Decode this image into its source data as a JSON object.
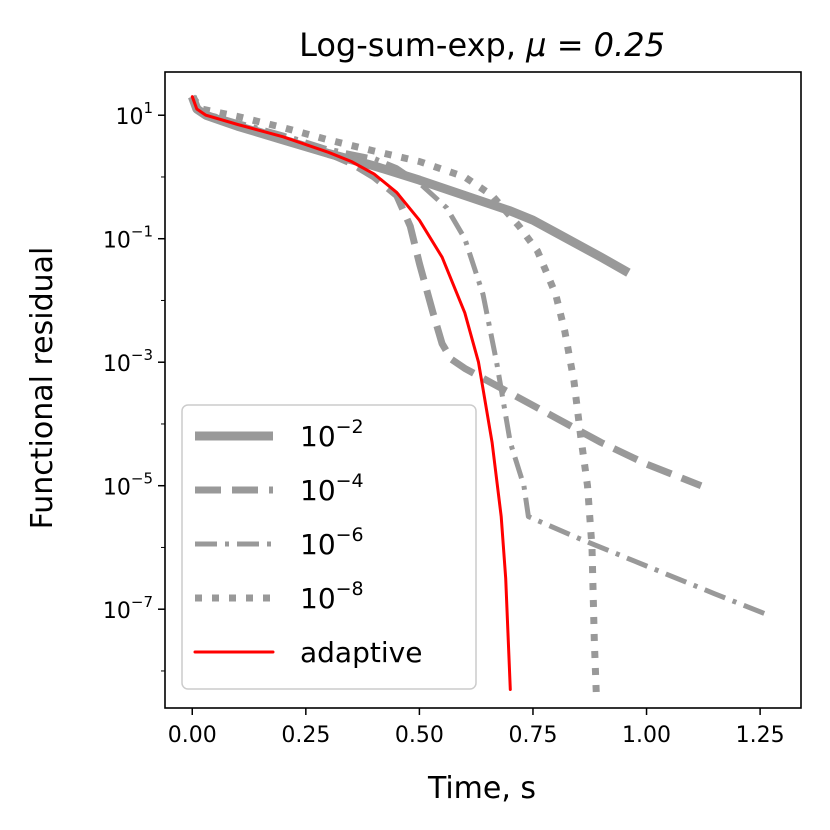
{
  "chart_data": {
    "type": "line",
    "title": "Log-sum-exp, ",
    "title_math": "μ = 0.25",
    "xlabel": "Time, s",
    "ylabel": "Functional residual",
    "xlim": [
      -0.06,
      1.34
    ],
    "ylim_log10": [
      -8.6,
      1.7
    ],
    "yscale": "log",
    "x_ticks": [
      {
        "value": 0.0,
        "label": "0.00"
      },
      {
        "value": 0.25,
        "label": "0.25"
      },
      {
        "value": 0.5,
        "label": "0.50"
      },
      {
        "value": 0.75,
        "label": "0.75"
      },
      {
        "value": 1.0,
        "label": "1.00"
      },
      {
        "value": 1.25,
        "label": "1.25"
      }
    ],
    "y_ticks": [
      {
        "exp": 1,
        "base": "10",
        "sup": "1"
      },
      {
        "exp": -1,
        "base": "10",
        "sup": "−1"
      },
      {
        "exp": -3,
        "base": "10",
        "sup": "−3"
      },
      {
        "exp": -5,
        "base": "10",
        "sup": "−5"
      },
      {
        "exp": -7,
        "base": "10",
        "sup": "−7"
      }
    ],
    "legend": {
      "placement": "lower-left",
      "entries": [
        {
          "base": "10",
          "sup": "−2",
          "text": ""
        },
        {
          "base": "10",
          "sup": "−4",
          "text": ""
        },
        {
          "base": "10",
          "sup": "−6",
          "text": ""
        },
        {
          "base": "10",
          "sup": "−8",
          "text": ""
        },
        {
          "base": "",
          "sup": "",
          "text": "adaptive"
        }
      ]
    },
    "series": [
      {
        "name": "1e-2",
        "color": "#999999",
        "style": "solid-thick",
        "points": [
          [
            0.0,
            1.3
          ],
          [
            0.01,
            1.1
          ],
          [
            0.03,
            1.0
          ],
          [
            0.1,
            0.82
          ],
          [
            0.2,
            0.6
          ],
          [
            0.3,
            0.38
          ],
          [
            0.4,
            0.18
          ],
          [
            0.5,
            -0.05
          ],
          [
            0.6,
            -0.3
          ],
          [
            0.7,
            -0.55
          ],
          [
            0.75,
            -0.7
          ],
          [
            0.8,
            -0.9
          ],
          [
            0.9,
            -1.3
          ],
          [
            0.96,
            -1.55
          ]
        ]
      },
      {
        "name": "1e-4",
        "color": "#999999",
        "style": "dashed",
        "points": [
          [
            0.0,
            1.3
          ],
          [
            0.01,
            1.1
          ],
          [
            0.03,
            1.0
          ],
          [
            0.1,
            0.85
          ],
          [
            0.2,
            0.62
          ],
          [
            0.3,
            0.38
          ],
          [
            0.35,
            0.22
          ],
          [
            0.4,
            0.0
          ],
          [
            0.45,
            -0.3
          ],
          [
            0.48,
            -0.8
          ],
          [
            0.5,
            -1.4
          ],
          [
            0.53,
            -2.2
          ],
          [
            0.55,
            -2.7
          ],
          [
            0.57,
            -2.95
          ],
          [
            0.6,
            -3.1
          ],
          [
            0.7,
            -3.5
          ],
          [
            0.8,
            -3.9
          ],
          [
            0.9,
            -4.3
          ],
          [
            1.0,
            -4.65
          ],
          [
            1.12,
            -5.0
          ]
        ]
      },
      {
        "name": "1e-6",
        "color": "#999999",
        "style": "dashdot",
        "points": [
          [
            0.0,
            1.3
          ],
          [
            0.02,
            1.05
          ],
          [
            0.1,
            0.88
          ],
          [
            0.2,
            0.68
          ],
          [
            0.3,
            0.45
          ],
          [
            0.4,
            0.3
          ],
          [
            0.45,
            0.15
          ],
          [
            0.5,
            -0.1
          ],
          [
            0.56,
            -0.5
          ],
          [
            0.6,
            -1.0
          ],
          [
            0.64,
            -1.9
          ],
          [
            0.67,
            -3.0
          ],
          [
            0.7,
            -4.3
          ],
          [
            0.73,
            -5.0
          ],
          [
            0.74,
            -5.5
          ],
          [
            0.85,
            -5.85
          ],
          [
            1.0,
            -6.3
          ],
          [
            1.15,
            -6.75
          ],
          [
            1.27,
            -7.1
          ]
        ]
      },
      {
        "name": "1e-8",
        "color": "#999999",
        "style": "dotted",
        "points": [
          [
            0.0,
            1.3
          ],
          [
            0.02,
            1.1
          ],
          [
            0.1,
            0.98
          ],
          [
            0.2,
            0.8
          ],
          [
            0.3,
            0.6
          ],
          [
            0.4,
            0.42
          ],
          [
            0.5,
            0.25
          ],
          [
            0.6,
            0.0
          ],
          [
            0.66,
            -0.3
          ],
          [
            0.72,
            -0.8
          ],
          [
            0.76,
            -1.2
          ],
          [
            0.8,
            -1.9
          ],
          [
            0.82,
            -2.5
          ],
          [
            0.84,
            -3.3
          ],
          [
            0.855,
            -4.2
          ],
          [
            0.87,
            -5.0
          ],
          [
            0.88,
            -6.0
          ],
          [
            0.885,
            -7.5
          ],
          [
            0.89,
            -8.5
          ]
        ]
      },
      {
        "name": "adaptive",
        "color": "#ff0000",
        "style": "solid",
        "points": [
          [
            0.0,
            1.3
          ],
          [
            0.01,
            1.1
          ],
          [
            0.03,
            1.0
          ],
          [
            0.1,
            0.85
          ],
          [
            0.2,
            0.65
          ],
          [
            0.3,
            0.4
          ],
          [
            0.35,
            0.25
          ],
          [
            0.4,
            0.05
          ],
          [
            0.45,
            -0.25
          ],
          [
            0.5,
            -0.7
          ],
          [
            0.55,
            -1.3
          ],
          [
            0.6,
            -2.2
          ],
          [
            0.63,
            -3.0
          ],
          [
            0.66,
            -4.3
          ],
          [
            0.68,
            -5.5
          ],
          [
            0.69,
            -6.5
          ],
          [
            0.695,
            -7.4
          ],
          [
            0.7,
            -8.3
          ]
        ]
      }
    ]
  }
}
